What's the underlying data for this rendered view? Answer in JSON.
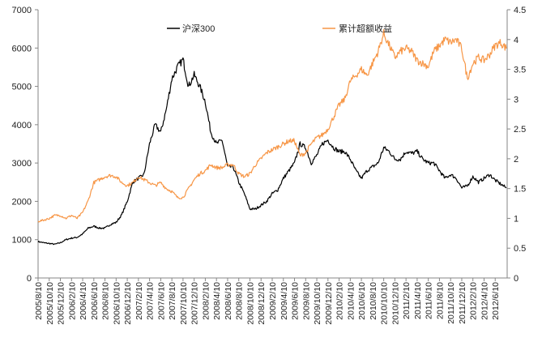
{
  "chart_data": {
    "type": "line",
    "title": "",
    "legend": {
      "placement": "top-center",
      "entries": [
        "沪深300",
        "累计超额收益"
      ]
    },
    "colors": {
      "csi300": "#000000",
      "excess": "#F79646",
      "axis": "#868686"
    },
    "left_axis": {
      "ylim": [
        0,
        7000
      ],
      "ticks": [
        "0",
        "1000",
        "2000",
        "3000",
        "4000",
        "5000",
        "6000",
        "7000"
      ]
    },
    "right_axis": {
      "ylim": [
        0,
        4.5
      ],
      "ticks": [
        "0",
        "0.5",
        "1",
        "1.5",
        "2",
        "2.5",
        "3",
        "3.5",
        "4",
        "4.5"
      ]
    },
    "x_labels": [
      "2005/8/10",
      "2005/10/10",
      "2005/12/10",
      "2006/2/10",
      "2006/4/10",
      "2006/6/10",
      "2006/8/10",
      "2006/10/10",
      "2006/12/10",
      "2007/2/10",
      "2007/4/10",
      "2007/6/10",
      "2007/8/10",
      "2007/10/10",
      "2007/12/10",
      "2008/2/10",
      "2008/4/10",
      "2008/6/10",
      "2008/8/10",
      "2008/10/10",
      "2008/12/10",
      "2009/2/10",
      "2009/4/10",
      "2009/6/10",
      "2009/8/10",
      "2009/10/10",
      "2009/12/10",
      "2010/2/10",
      "2010/4/10",
      "2010/6/10",
      "2010/8/10",
      "2010/10/10",
      "2010/12/10",
      "2011/2/10",
      "2011/4/10",
      "2011/6/10",
      "2011/8/10",
      "2011/10/10",
      "2011/12/10",
      "2012/2/10",
      "2012/4/10",
      "2012/6/10"
    ],
    "series": [
      {
        "name": "沪深300",
        "axis": "left",
        "values": [
          950,
          920,
          900,
          880,
          920,
          1000,
          1040,
          1060,
          1150,
          1300,
          1350,
          1300,
          1300,
          1400,
          1450,
          1650,
          2000,
          2500,
          2600,
          2700,
          3500,
          4000,
          3800,
          4400,
          5200,
          5500,
          5700,
          5000,
          5300,
          5000,
          4600,
          3800,
          3500,
          3600,
          2900,
          2900,
          2500,
          2200,
          1800,
          1800,
          1900,
          2000,
          2200,
          2300,
          2600,
          2800,
          3000,
          3500,
          3400,
          3000,
          3200,
          3500,
          3600,
          3400,
          3300,
          3300,
          3100,
          2800,
          2600,
          2800,
          2900,
          3000,
          3400,
          3300,
          3100,
          3100,
          3300,
          3250,
          3300,
          3100,
          3000,
          3000,
          2800,
          2600,
          2700,
          2600,
          2350,
          2400,
          2650,
          2500,
          2600,
          2700,
          2550,
          2450,
          2350
        ]
      },
      {
        "name": "累计超额收益",
        "axis": "right",
        "values": [
          0.95,
          0.97,
          1.0,
          1.05,
          1.05,
          1.0,
          1.05,
          1.0,
          1.1,
          1.3,
          1.6,
          1.65,
          1.7,
          1.72,
          1.7,
          1.6,
          1.55,
          1.6,
          1.7,
          1.65,
          1.6,
          1.55,
          1.6,
          1.5,
          1.45,
          1.35,
          1.35,
          1.5,
          1.65,
          1.75,
          1.8,
          1.9,
          1.85,
          1.85,
          1.9,
          1.9,
          1.75,
          1.7,
          1.75,
          1.9,
          2.0,
          2.1,
          2.15,
          2.2,
          2.25,
          2.3,
          2.3,
          2.05,
          2.1,
          2.25,
          2.35,
          2.4,
          2.5,
          2.7,
          2.9,
          3.0,
          3.3,
          3.4,
          3.5,
          3.4,
          3.6,
          3.8,
          4.1,
          3.9,
          3.7,
          3.8,
          3.85,
          3.8,
          3.65,
          3.6,
          3.55,
          3.8,
          3.9,
          4.0,
          3.95,
          4.0,
          3.85,
          3.35,
          3.6,
          3.7,
          3.65,
          3.75,
          3.9,
          3.95,
          3.85
        ]
      }
    ],
    "grid": false
  }
}
